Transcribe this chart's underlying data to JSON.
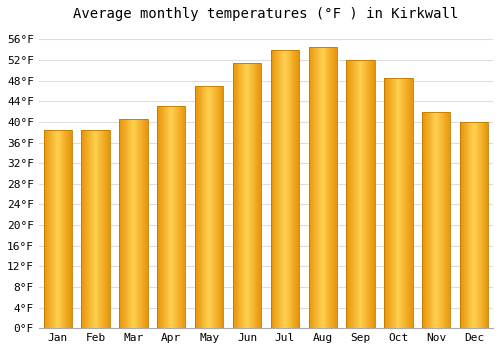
{
  "title": "Average monthly temperatures (°F ) in Kirkwall",
  "months": [
    "Jan",
    "Feb",
    "Mar",
    "Apr",
    "May",
    "Jun",
    "Jul",
    "Aug",
    "Sep",
    "Oct",
    "Nov",
    "Dec"
  ],
  "values": [
    38.5,
    38.5,
    40.5,
    43.0,
    47.0,
    51.5,
    54.0,
    54.5,
    52.0,
    48.5,
    42.0,
    40.0
  ],
  "bar_color_left": "#E8950A",
  "bar_color_center": "#FFD050",
  "bar_edge_color": "#C07800",
  "background_color": "#FFFFFF",
  "grid_color": "#DDDDDD",
  "ylim": [
    0,
    58
  ],
  "ytick_step": 4,
  "title_fontsize": 10,
  "tick_fontsize": 8,
  "font_family": "monospace"
}
